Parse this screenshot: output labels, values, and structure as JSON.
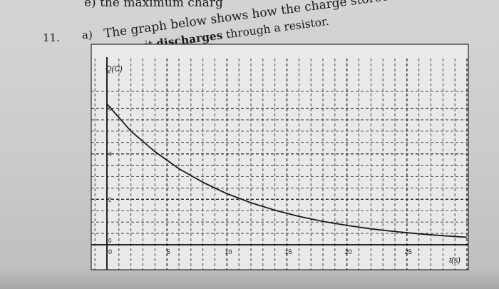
{
  "question": {
    "previous_part_fragment": "e)  the maximum charg",
    "number": "11.",
    "part": "a)",
    "line1": "The graph below shows how the charge stored in a capacitor varies with",
    "line2_pre": "time as it ",
    "line2_bold": "discharges",
    "line2_post": " through a resistor."
  },
  "chart_data": {
    "type": "line",
    "title": "",
    "xlabel": "t(s)",
    "ylabel": "Q(C)",
    "xlim": [
      0,
      30
    ],
    "ylim": [
      0,
      6
    ],
    "x_ticks": [
      0,
      5,
      10,
      15,
      20,
      25
    ],
    "y_ticks": [
      0,
      2,
      4,
      6
    ],
    "grid": true,
    "series": [
      {
        "x": [
          0,
          2,
          4,
          6,
          8,
          10,
          12,
          14,
          16,
          18,
          20,
          22,
          24,
          26,
          28,
          30
        ],
        "y": [
          6.2,
          5.0,
          4.1,
          3.35,
          2.75,
          2.25,
          1.85,
          1.52,
          1.25,
          1.03,
          0.85,
          0.7,
          0.58,
          0.48,
          0.4,
          0.33
        ]
      }
    ],
    "colors": {
      "line": "#1a1a1a",
      "grid": "#2a2a2a",
      "background": "#e9e9e9"
    }
  }
}
